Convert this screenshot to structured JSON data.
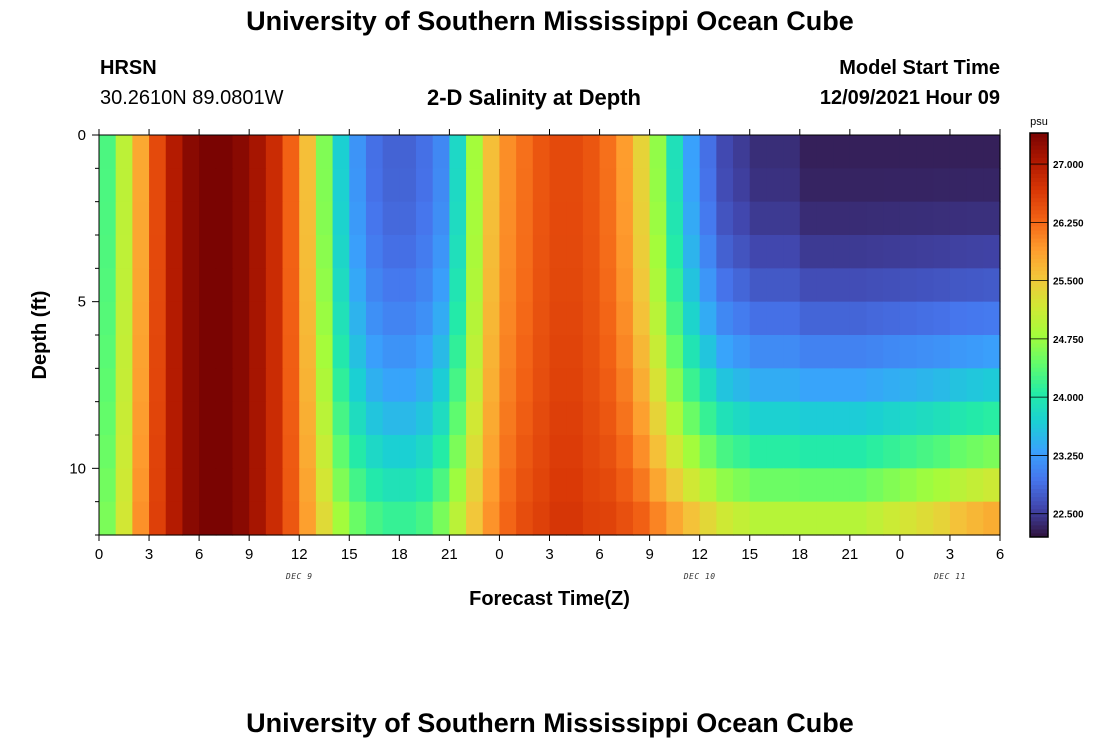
{
  "page": {
    "title": "University of Southern Mississippi Ocean Cube",
    "station": "HRSN",
    "coordinates": "30.2610N  89.0801W",
    "subtitle": "2-D Salinity at Depth",
    "model_start_label": "Model Start Time",
    "model_start_value": "12/09/2021 Hour 09",
    "footer_title": "University of Southern Mississippi Ocean Cube"
  },
  "chart_data": {
    "type": "heatmap",
    "title": "2-D Salinity at Depth",
    "xlabel": "Forecast Time(Z)",
    "ylabel": "Depth (ft)",
    "x_range_hours": [
      0,
      54
    ],
    "x_ticks": [
      "0",
      "3",
      "6",
      "9",
      "12",
      "15",
      "18",
      "21",
      "0",
      "3",
      "6",
      "9",
      "12",
      "15",
      "18",
      "21",
      "0",
      "3",
      "6"
    ],
    "x_tick_hours": [
      0,
      3,
      6,
      9,
      12,
      15,
      18,
      21,
      24,
      27,
      30,
      33,
      36,
      39,
      42,
      45,
      48,
      51,
      54
    ],
    "date_labels": [
      {
        "text": "DEC 9",
        "hour": 12
      },
      {
        "text": "DEC 10",
        "hour": 36
      },
      {
        "text": "DEC 11",
        "hour": 51
      }
    ],
    "y_range_ft": [
      0,
      12
    ],
    "y_inverted": true,
    "y_ticks": [
      "0",
      "5",
      "10"
    ],
    "y_tick_values": [
      0,
      5,
      10
    ],
    "depth_levels": 12,
    "time_steps": 54,
    "colorbar": {
      "unit": "psu",
      "min": 22.2,
      "max": 27.4,
      "tick_values": [
        27.0,
        26.25,
        25.5,
        24.75,
        24.0,
        23.25,
        22.5
      ],
      "tick_labels": [
        "27.000",
        "26.250",
        "25.500",
        "24.750",
        "24.000",
        "23.250",
        "22.500"
      ]
    },
    "colormap": [
      "#30123b",
      "#4145ab",
      "#4675ed",
      "#39a2fc",
      "#1bcfd4",
      "#24eca6",
      "#61fc6c",
      "#a4fc3b",
      "#d1e834",
      "#f3c63a",
      "#fe9b2d",
      "#f36315",
      "#d93806",
      "#b11901",
      "#7a0402"
    ],
    "surface_salinity_psu": [
      24.3,
      25.0,
      25.8,
      26.5,
      27.0,
      27.3,
      27.4,
      27.4,
      27.3,
      27.1,
      26.8,
      26.3,
      25.6,
      24.6,
      23.7,
      23.2,
      22.9,
      22.8,
      22.8,
      22.9,
      23.1,
      23.8,
      24.8,
      25.6,
      26.0,
      26.2,
      26.4,
      26.5,
      26.5,
      26.4,
      26.2,
      25.9,
      25.4,
      24.7,
      23.9,
      23.3,
      22.9,
      22.6,
      22.5,
      22.4,
      22.4,
      22.4,
      22.3,
      22.3,
      22.3,
      22.3,
      22.3,
      22.3,
      22.3,
      22.3,
      22.3,
      22.3,
      22.3,
      22.3
    ],
    "bottom_salinity_psu": [
      24.6,
      25.2,
      26.0,
      26.6,
      27.0,
      27.3,
      27.4,
      27.4,
      27.3,
      27.1,
      26.8,
      26.4,
      25.9,
      25.4,
      24.9,
      24.6,
      24.4,
      24.3,
      24.3,
      24.4,
      24.7,
      25.1,
      25.6,
      26.0,
      26.3,
      26.5,
      26.6,
      26.7,
      26.7,
      26.6,
      26.6,
      26.5,
      26.4,
      26.2,
      26.0,
      25.8,
      25.6,
      25.4,
      25.3,
      25.2,
      25.2,
      25.2,
      25.2,
      25.2,
      25.2,
      25.2,
      25.3,
      25.4,
      25.5,
      25.6,
      25.7,
      25.9,
      26.0,
      26.1
    ],
    "depth_profile_exponent": 2.2
  }
}
